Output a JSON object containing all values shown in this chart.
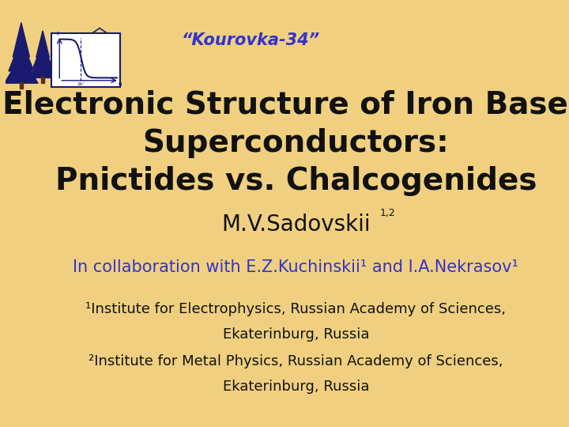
{
  "background_color": "#F0D080",
  "title_line1": "Electronic Structure of Iron Based",
  "title_line2": "Superconductors:",
  "title_line3": "Pnictides vs. Chalcogenides",
  "title_color": "#111111",
  "title_fontsize": 28,
  "author": "M.V.Sadovskii",
  "author_superscript": "1,2",
  "author_fontsize": 20,
  "author_color": "#111111",
  "collab_full": "In collaboration with E.Z.Kuchinskii¹ and I.A.Nekrasov¹",
  "collab_color": "#3333CC",
  "collab_fontsize": 15,
  "inst1_line1": "¹Institute for Electrophysics, Russian Academy of Sciences,",
  "inst1_line2": "Ekaterinburg, Russia",
  "inst2_line1": "²Institute for Metal Physics, Russian Academy of Sciences,",
  "inst2_line2": "Ekaterinburg, Russia",
  "inst_fontsize": 13,
  "inst_color": "#111111",
  "kourovka_text": "“Kourovka-34”",
  "kourovka_color": "#3333CC",
  "kourovka_fontsize": 15,
  "tree_color": "#1a1a6e"
}
